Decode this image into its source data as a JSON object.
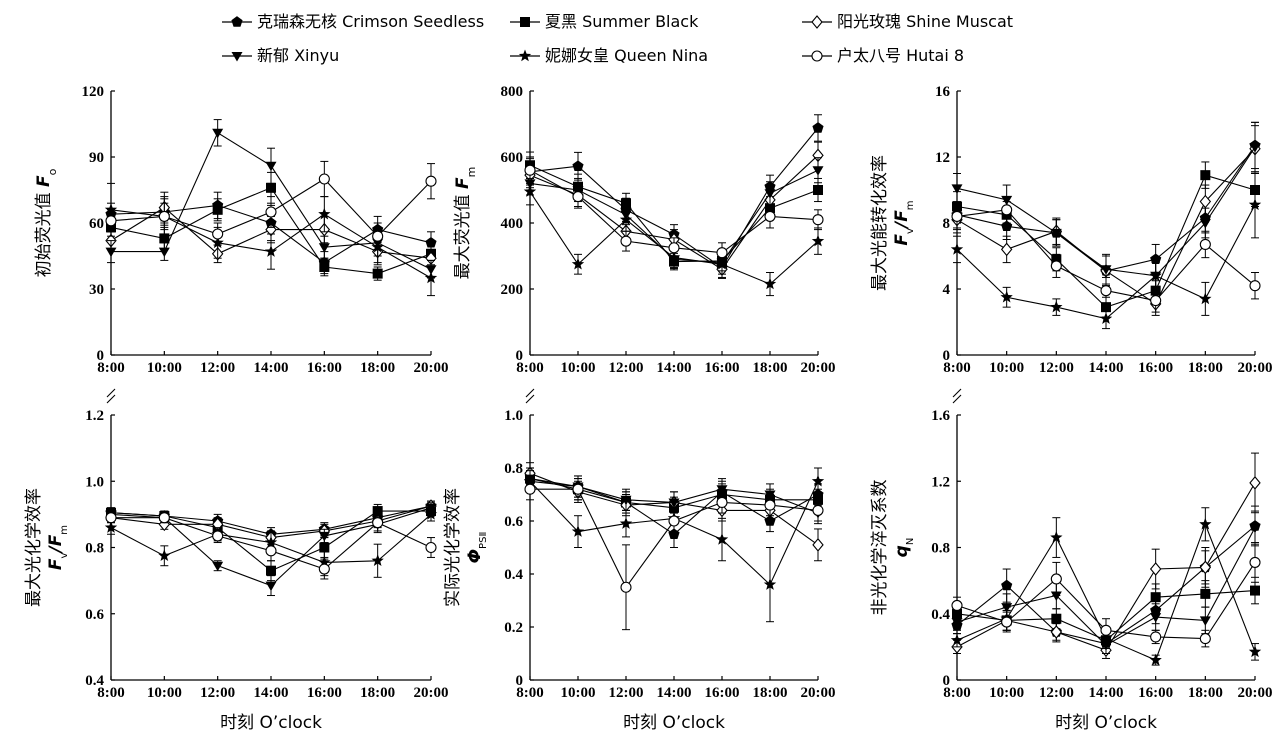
{
  "legend": [
    {
      "label": "克瑞森无核 Crimson Seedless",
      "marker": "pentagon-filled"
    },
    {
      "label": "夏黑 Summer Black",
      "marker": "square-filled"
    },
    {
      "label": "阳光玫瑰 Shine Muscat",
      "marker": "diamond-open"
    },
    {
      "label": "新郁 Xinyu",
      "marker": "triangle-down-filled"
    },
    {
      "label": "妮娜女皇 Queen Nina",
      "marker": "star-filled"
    },
    {
      "label": "户太八号 Hutai 8",
      "marker": "circle-open"
    }
  ],
  "x_title": "时刻 O’clock",
  "chart_data": [
    {
      "type": "line",
      "ylabel": [
        "初始荧光值 F",
        "o"
      ],
      "x": [
        "8:00",
        "10:00",
        "12:00",
        "14:00",
        "16:00",
        "18:00",
        "20:00"
      ],
      "ylim": [
        0,
        120
      ],
      "yticks": [
        "0",
        "30",
        "60",
        "90",
        "120"
      ],
      "series": [
        {
          "name": "克瑞森无核 Crimson Seedless",
          "values": [
            64,
            65,
            68,
            60,
            42,
            57,
            51
          ],
          "err": [
            5,
            6,
            6,
            8,
            5,
            6,
            5
          ]
        },
        {
          "name": "夏黑 Summer Black",
          "values": [
            58,
            53,
            66,
            76,
            40,
            37,
            46
          ],
          "err": [
            6,
            5,
            5,
            7,
            4,
            3,
            5
          ]
        },
        {
          "name": "阳光玫瑰 Shine Muscat",
          "values": [
            52,
            67,
            46,
            57,
            57,
            47,
            44
          ],
          "err": [
            4,
            7,
            4,
            6,
            6,
            5,
            4
          ]
        },
        {
          "name": "新郁 Xinyu",
          "values": [
            47,
            47,
            101,
            86,
            49,
            51,
            39
          ],
          "err": [
            5,
            4,
            6,
            8,
            5,
            6,
            4
          ]
        },
        {
          "name": "妮娜女皇 Queen Nina",
          "values": [
            66,
            63,
            51,
            47,
            64,
            49,
            35
          ],
          "err": [
            12,
            9,
            7,
            8,
            8,
            8,
            8
          ]
        },
        {
          "name": "户太八号 Hutai 8",
          "values": [
            61,
            63,
            55,
            65,
            80,
            54,
            79
          ],
          "err": [
            5,
            6,
            5,
            7,
            8,
            6,
            8
          ]
        }
      ]
    },
    {
      "type": "line",
      "ylabel": [
        "最大荧光值 F",
        "m"
      ],
      "x": [
        "8:00",
        "10:00",
        "12:00",
        "14:00",
        "16:00",
        "18:00",
        "20:00"
      ],
      "ylim": [
        0,
        800
      ],
      "yticks": [
        "0",
        "200",
        "400",
        "600",
        "800"
      ],
      "series": [
        {
          "name": "克瑞森无核 Crimson Seedless",
          "values": [
            555,
            572,
            440,
            365,
            265,
            510,
            688
          ],
          "err": [
            40,
            42,
            35,
            30,
            30,
            35,
            40
          ]
        },
        {
          "name": "夏黑 Summer Black",
          "values": [
            575,
            510,
            460,
            283,
            285,
            445,
            500
          ],
          "err": [
            40,
            38,
            30,
            25,
            30,
            35,
            35
          ]
        },
        {
          "name": "阳光玫瑰 Shine Muscat",
          "values": [
            545,
            485,
            375,
            350,
            260,
            470,
            605
          ],
          "err": [
            38,
            35,
            30,
            30,
            28,
            35,
            40
          ]
        },
        {
          "name": "新郁 Xinyu",
          "values": [
            520,
            500,
            425,
            290,
            280,
            490,
            560
          ],
          "err": [
            35,
            35,
            30,
            28,
            25,
            35,
            38
          ]
        },
        {
          "name": "妮娜女皇 Queen Nina",
          "values": [
            495,
            275,
            410,
            295,
            275,
            215,
            345
          ],
          "err": [
            40,
            30,
            35,
            30,
            30,
            35,
            40
          ]
        },
        {
          "name": "户太八号 Hutai 8",
          "values": [
            560,
            480,
            345,
            325,
            310,
            420,
            410
          ],
          "err": [
            40,
            35,
            30,
            30,
            30,
            35,
            30
          ]
        }
      ]
    },
    {
      "type": "line",
      "ylabel": [
        "最大光能转化效率",
        "F/F"
      ],
      "x": [
        "8:00",
        "10:00",
        "12:00",
        "14:00",
        "16:00",
        "18:00",
        "20:00"
      ],
      "ylim": [
        0,
        16
      ],
      "yticks": [
        "0",
        "4",
        "8",
        "12",
        "16"
      ],
      "series": [
        {
          "name": "克瑞森无核 Crimson Seedless",
          "values": [
            8.5,
            7.8,
            7.4,
            5.1,
            5.8,
            8.3,
            12.7
          ],
          "err": [
            0.8,
            0.8,
            0.8,
            0.9,
            0.9,
            0.9,
            1.4
          ]
        },
        {
          "name": "夏黑 Summer Black",
          "values": [
            9.0,
            8.5,
            5.8,
            2.9,
            3.9,
            10.9,
            10.0
          ],
          "err": [
            0.9,
            0.8,
            0.7,
            0.6,
            0.6,
            0.8,
            1.0
          ]
        },
        {
          "name": "阳光玫瑰 Shine Muscat",
          "values": [
            8.2,
            6.4,
            7.5,
            5.1,
            3.1,
            9.3,
            12.5
          ],
          "err": [
            0.8,
            0.8,
            0.8,
            0.9,
            0.7,
            1.0,
            1.4
          ]
        },
        {
          "name": "新郁 Xinyu",
          "values": [
            10.1,
            9.4,
            7.4,
            5.2,
            4.8,
            8.0,
            12.6
          ],
          "err": [
            0.9,
            0.9,
            0.8,
            0.9,
            0.8,
            0.9,
            1.5
          ]
        },
        {
          "name": "妮娜女皇 Queen Nina",
          "values": [
            6.4,
            3.5,
            2.9,
            2.2,
            4.8,
            3.4,
            9.1
          ],
          "err": [
            0.8,
            0.6,
            0.5,
            0.6,
            0.8,
            1.0,
            2.0
          ]
        },
        {
          "name": "户太八号 Hutai 8",
          "values": [
            8.4,
            8.8,
            5.4,
            3.9,
            3.3,
            6.7,
            4.2
          ],
          "err": [
            0.8,
            0.8,
            0.7,
            0.8,
            0.7,
            0.8,
            0.8
          ]
        }
      ]
    },
    {
      "type": "line",
      "ylabel": [
        "最大光化学效率",
        "F/F"
      ],
      "x": [
        "8:00",
        "10:00",
        "12:00",
        "14:00",
        "16:00",
        "18:00",
        "20:00"
      ],
      "ylim": [
        0.4,
        1.2
      ],
      "yticks": [
        "0.4",
        "0.6",
        "0.8",
        "1.0",
        "1.2"
      ],
      "series": [
        {
          "name": "克瑞森无核 Crimson Seedless",
          "values": [
            0.905,
            0.895,
            0.88,
            0.84,
            0.855,
            0.89,
            0.925
          ],
          "err": [
            0.015,
            0.015,
            0.02,
            0.02,
            0.02,
            0.02,
            0.015
          ]
        },
        {
          "name": "夏黑 Summer Black",
          "values": [
            0.905,
            0.895,
            0.86,
            0.73,
            0.8,
            0.91,
            0.91
          ],
          "err": [
            0.015,
            0.015,
            0.02,
            0.03,
            0.03,
            0.02,
            0.015
          ]
        },
        {
          "name": "阳光玫瑰 Shine Muscat",
          "values": [
            0.89,
            0.87,
            0.87,
            0.83,
            0.85,
            0.88,
            0.925
          ],
          "err": [
            0.015,
            0.015,
            0.02,
            0.02,
            0.02,
            0.02,
            0.015
          ]
        },
        {
          "name": "新郁 Xinyu",
          "values": [
            0.9,
            0.89,
            0.745,
            0.685,
            0.835,
            0.87,
            0.92
          ],
          "err": [
            0.015,
            0.015,
            0.015,
            0.03,
            0.02,
            0.02,
            0.015
          ]
        },
        {
          "name": "妮娜女皇 Queen Nina",
          "values": [
            0.86,
            0.775,
            0.84,
            0.815,
            0.755,
            0.76,
            0.9
          ],
          "err": [
            0.02,
            0.03,
            0.02,
            0.03,
            0.04,
            0.05,
            0.02
          ]
        },
        {
          "name": "户太八号 Hutai 8",
          "values": [
            0.89,
            0.89,
            0.835,
            0.79,
            0.735,
            0.875,
            0.8
          ],
          "err": [
            0.015,
            0.015,
            0.02,
            0.03,
            0.03,
            0.03,
            0.03
          ]
        }
      ]
    },
    {
      "type": "line",
      "ylabel": [
        "实际光化学效率",
        "Φ"
      ],
      "x": [
        "8:00",
        "10:00",
        "12:00",
        "14:00",
        "16:00",
        "18:00",
        "20:00"
      ],
      "ylim": [
        0,
        1.0
      ],
      "yticks": [
        "0",
        "0.2",
        "0.4",
        "0.6",
        "0.8",
        "1.0"
      ],
      "series": [
        {
          "name": "克瑞森无核 Crimson Seedless",
          "values": [
            0.75,
            0.73,
            0.67,
            0.55,
            0.71,
            0.6,
            0.7
          ],
          "err": [
            0.04,
            0.04,
            0.04,
            0.05,
            0.04,
            0.04,
            0.04
          ]
        },
        {
          "name": "夏黑 Summer Black",
          "values": [
            0.76,
            0.72,
            0.67,
            0.65,
            0.7,
            0.68,
            0.68
          ],
          "err": [
            0.04,
            0.04,
            0.04,
            0.04,
            0.04,
            0.04,
            0.04
          ]
        },
        {
          "name": "阳光玫瑰 Shine Muscat",
          "values": [
            0.78,
            0.71,
            0.66,
            0.67,
            0.64,
            0.64,
            0.51
          ],
          "err": [
            0.04,
            0.04,
            0.04,
            0.04,
            0.04,
            0.04,
            0.06
          ]
        },
        {
          "name": "新郁 Xinyu",
          "values": [
            0.76,
            0.73,
            0.68,
            0.67,
            0.72,
            0.7,
            0.63
          ],
          "err": [
            0.04,
            0.04,
            0.04,
            0.04,
            0.04,
            0.04,
            0.04
          ]
        },
        {
          "name": "妮娜女皇 Queen Nina",
          "values": [
            0.75,
            0.56,
            0.59,
            0.61,
            0.53,
            0.36,
            0.75
          ],
          "err": [
            0.04,
            0.06,
            0.05,
            0.06,
            0.08,
            0.14,
            0.05
          ]
        },
        {
          "name": "户太八号 Hutai 8",
          "values": [
            0.72,
            0.72,
            0.35,
            0.6,
            0.67,
            0.66,
            0.64
          ],
          "err": [
            0.04,
            0.04,
            0.16,
            0.05,
            0.04,
            0.04,
            0.04
          ]
        }
      ]
    },
    {
      "type": "line",
      "ylabel": [
        "非光化学淬灭系数",
        "q"
      ],
      "x": [
        "8:00",
        "10:00",
        "12:00",
        "14:00",
        "16:00",
        "18:00",
        "20:00"
      ],
      "ylim": [
        0,
        1.6
      ],
      "yticks": [
        "0",
        "0.4",
        "0.8",
        "1.2",
        "1.6"
      ],
      "series": [
        {
          "name": "克瑞森无核 Crimson Seedless",
          "values": [
            0.33,
            0.57,
            0.29,
            0.22,
            0.42,
            0.68,
            0.93
          ],
          "err": [
            0.05,
            0.1,
            0.06,
            0.06,
            0.08,
            0.1,
            0.12
          ]
        },
        {
          "name": "夏黑 Summer Black",
          "values": [
            0.4,
            0.36,
            0.37,
            0.24,
            0.5,
            0.52,
            0.54
          ],
          "err": [
            0.05,
            0.06,
            0.06,
            0.05,
            0.08,
            0.08,
            0.08
          ]
        },
        {
          "name": "阳光玫瑰 Shine Muscat",
          "values": [
            0.2,
            0.36,
            0.29,
            0.18,
            0.67,
            0.68,
            1.19
          ],
          "err": [
            0.04,
            0.06,
            0.05,
            0.05,
            0.12,
            0.12,
            0.18
          ]
        },
        {
          "name": "新郁 Xinyu",
          "values": [
            0.35,
            0.44,
            0.51,
            0.21,
            0.38,
            0.36,
            0.92
          ],
          "err": [
            0.05,
            0.08,
            0.08,
            0.05,
            0.08,
            0.08,
            0.1
          ]
        },
        {
          "name": "妮娜女皇 Queen Nina",
          "values": [
            0.24,
            0.37,
            0.86,
            0.25,
            0.12,
            0.94,
            0.17
          ],
          "err": [
            0.04,
            0.07,
            0.12,
            0.06,
            0.03,
            0.1,
            0.05
          ]
        },
        {
          "name": "户太八号 Hutai 8",
          "values": [
            0.45,
            0.35,
            0.61,
            0.3,
            0.26,
            0.25,
            0.71
          ],
          "err": [
            0.05,
            0.06,
            0.1,
            0.07,
            0.04,
            0.05,
            0.12
          ]
        }
      ]
    }
  ]
}
